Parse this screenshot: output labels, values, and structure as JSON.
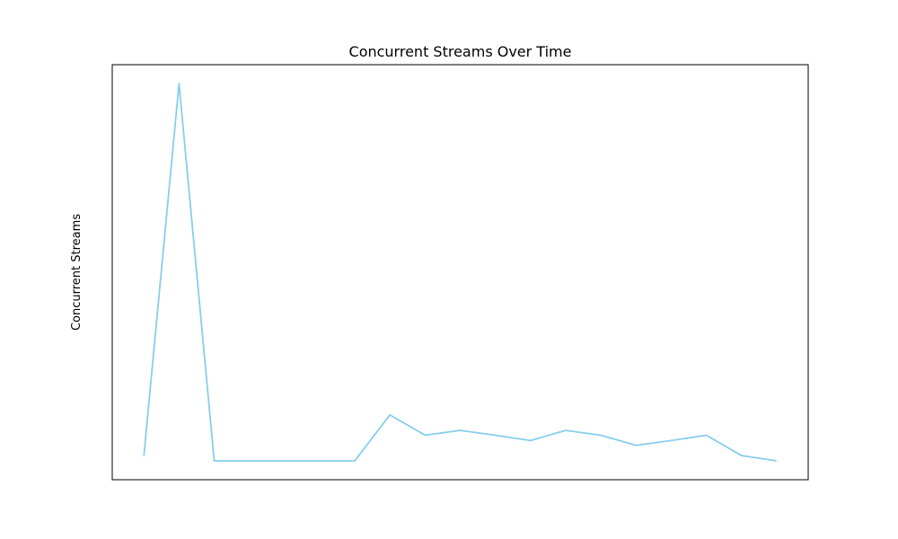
{
  "chart_data": {
    "type": "line",
    "title": "Concurrent Streams Over Time",
    "xlabel": "",
    "ylabel": "Concurrent Streams",
    "grid": false,
    "x_ticks_shown": false,
    "y_ticks_shown": false,
    "series": [
      {
        "color": "#87ceeb",
        "values": [
          1.0,
          78.0,
          0.0,
          0.0,
          0.0,
          0.0,
          0.0,
          9.5,
          5.3,
          6.3,
          5.3,
          4.2,
          6.3,
          5.3,
          3.2,
          4.2,
          5.3,
          1.1,
          0.0
        ]
      }
    ]
  }
}
